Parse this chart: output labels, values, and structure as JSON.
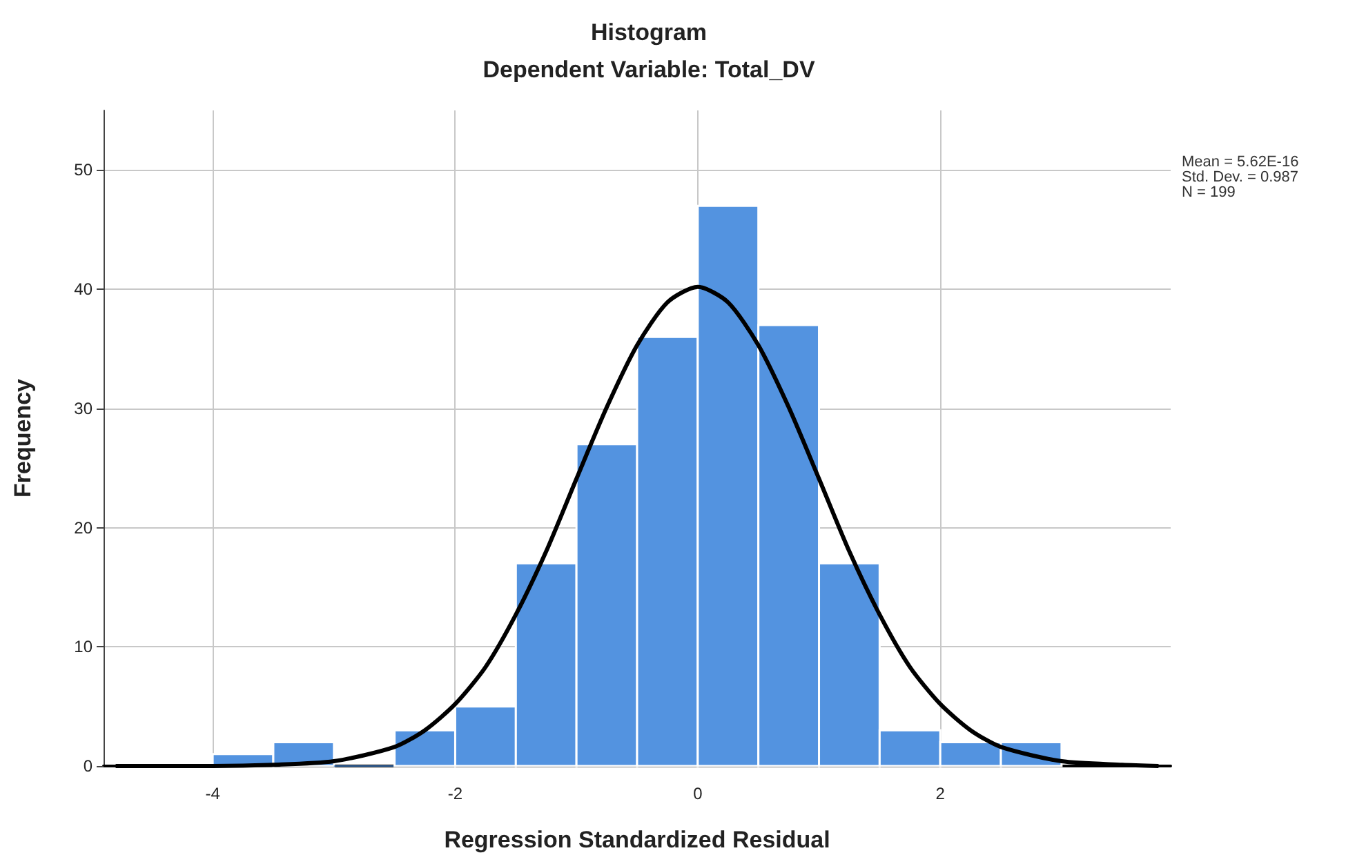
{
  "chart_data": {
    "type": "histogram",
    "title": "Histogram",
    "subtitle": "Dependent Variable: Total_DV",
    "xlabel": "Regression Standardized Residual",
    "ylabel": "Frequency",
    "bins": [
      -4,
      -3.5,
      -3,
      -2.5,
      -2,
      -1.5,
      -1,
      -0.5,
      0,
      0.5,
      1,
      1.5,
      2,
      2.5,
      3
    ],
    "values": [
      1,
      2,
      0,
      3,
      5,
      17,
      27,
      36,
      47,
      37,
      17,
      3,
      2,
      2
    ],
    "color": "#5393e0",
    "series": [
      {
        "type": "line",
        "color": "#000000",
        "x": [
          -4.8,
          -4,
          -3.5,
          -3,
          -2.5,
          -2.25,
          -2,
          -1.75,
          -1.5,
          -1.25,
          -1,
          -0.75,
          -0.5,
          -0.25,
          0,
          0.25,
          0.5,
          0.75,
          1,
          1.25,
          1.5,
          1.75,
          2,
          2.25,
          2.5,
          3,
          3.5,
          3.8
        ],
        "values": [
          0,
          0,
          0.1,
          0.4,
          1.6,
          3,
          5.2,
          8.3,
          12.7,
          18,
          24.1,
          30.1,
          35.3,
          38.9,
          40.2,
          38.9,
          35.3,
          30.1,
          24.1,
          18,
          12.7,
          8.3,
          5.2,
          3,
          1.6,
          0.4,
          0.1,
          0
        ]
      }
    ],
    "xlim": [
      -4.9,
      3.9
    ],
    "xticks": [
      -4,
      -2,
      0,
      2
    ],
    "ylim": [
      0,
      55
    ],
    "yticks": [
      0,
      10,
      20,
      30,
      40,
      50
    ],
    "grid": true,
    "marker": "none",
    "annotations": [
      "Mean = 5.62E-16",
      "Std. Dev. = 0.987",
      "N = 199"
    ]
  }
}
